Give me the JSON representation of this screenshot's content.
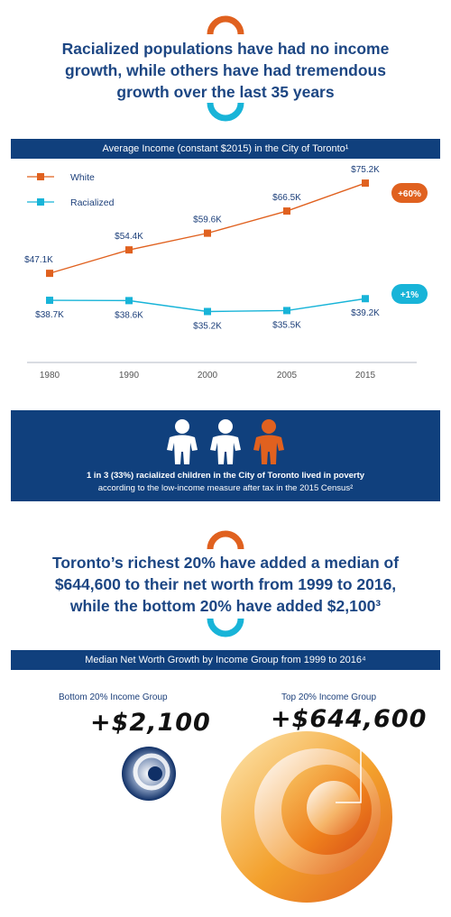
{
  "section1": {
    "headline_lines": [
      "Racialized populations have had no income",
      "growth, while others have had tremendous",
      "growth over the last 35 years"
    ],
    "band_title": "Average Income (constant $2015) in the City of Toronto¹"
  },
  "chart_data": [
    {
      "type": "line",
      "title": "Average Income (constant $2015) in the City of Toronto¹",
      "x": [
        "1980",
        "1990",
        "2000",
        "2005",
        "2015"
      ],
      "series": [
        {
          "name": "White",
          "color": "#e0611f",
          "values": [
            47.1,
            54.4,
            59.6,
            66.5,
            75.2
          ],
          "labels": [
            "$47.1K",
            "$54.4K",
            "$59.6K",
            "$66.5K",
            "$75.2K"
          ],
          "change": "+60%"
        },
        {
          "name": "Racialized",
          "color": "#18b4d8",
          "values": [
            38.7,
            38.6,
            35.2,
            35.5,
            39.2
          ],
          "labels": [
            "$38.7K",
            "$38.6K",
            "$35.2K",
            "$35.5K",
            "$39.2K"
          ],
          "change": "+1%"
        }
      ],
      "legend": "top-left",
      "grid": false
    },
    {
      "type": "bar",
      "title": "Median Net Worth Growth by Income Group from 1999 to 2016⁴",
      "categories": [
        "Bottom 20% Income Group",
        "Top 20% Income Group"
      ],
      "values": [
        2100,
        644600
      ],
      "labels": [
        "+$2,100",
        "+$644,600"
      ]
    }
  ],
  "poverty": {
    "line1": "1 in 3 (33%) racialized children in the City of Toronto lived in poverty",
    "line2": "according to the low-income measure after tax in the 2015 Census²",
    "icons": [
      "child-icon",
      "child-icon",
      "child-icon"
    ],
    "icon_colors": [
      "#ffffff",
      "#ffffff",
      "#e0611f"
    ]
  },
  "section2": {
    "headline_lines": [
      "Toronto’s richest 20% have added a median of",
      "$644,600 to their net worth from 1999 to 2016,",
      "while the bottom 20% have added $2,100³"
    ],
    "band_title": "Median Net Worth Growth by Income Group from 1999 to 2016⁴"
  },
  "colors": {
    "navy": "#10407d",
    "orange": "#e0611f",
    "cyan": "#18b4d8"
  }
}
